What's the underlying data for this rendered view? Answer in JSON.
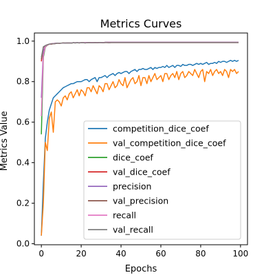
{
  "chart_data": {
    "type": "line",
    "title": "Metrics Curves",
    "xlabel": "Epochs",
    "ylabel": "Metrics Value",
    "xlim": [
      -3.5,
      103.5
    ],
    "ylim": [
      -0.005,
      1.04
    ],
    "xticks": [
      0,
      20,
      40,
      60,
      80,
      100
    ],
    "yticks": [
      0.0,
      0.2,
      0.4,
      0.6,
      0.8,
      1.0
    ],
    "xtick_labels": [
      "0",
      "20",
      "40",
      "60",
      "80",
      "100"
    ],
    "ytick_labels": [
      "0.0",
      "0.2",
      "0.4",
      "0.6",
      "0.8",
      "1.0"
    ],
    "legend_position": "lower-right",
    "grid": false,
    "x": [
      0,
      1,
      2,
      3,
      4,
      5,
      6,
      7,
      8,
      9,
      10,
      11,
      12,
      13,
      14,
      15,
      16,
      17,
      18,
      19,
      20,
      21,
      22,
      23,
      24,
      25,
      26,
      27,
      28,
      29,
      30,
      31,
      32,
      33,
      34,
      35,
      36,
      37,
      38,
      39,
      40,
      41,
      42,
      43,
      44,
      45,
      46,
      47,
      48,
      49,
      50,
      51,
      52,
      53,
      54,
      55,
      56,
      57,
      58,
      59,
      60,
      61,
      62,
      63,
      64,
      65,
      66,
      67,
      68,
      69,
      70,
      71,
      72,
      73,
      74,
      75,
      76,
      77,
      78,
      79,
      80,
      81,
      82,
      83,
      84,
      85,
      86,
      87,
      88,
      89,
      90,
      91,
      92,
      93,
      94,
      95,
      96,
      97,
      98,
      99
    ],
    "series": [
      {
        "name": "competition_dice_coef",
        "color": "#1f77b4",
        "values": [
          0.04,
          0.3,
          0.52,
          0.6,
          0.66,
          0.69,
          0.72,
          0.73,
          0.74,
          0.75,
          0.76,
          0.77,
          0.775,
          0.78,
          0.785,
          0.79,
          0.79,
          0.795,
          0.8,
          0.8,
          0.8,
          0.805,
          0.81,
          0.81,
          0.8,
          0.81,
          0.815,
          0.82,
          0.8,
          0.82,
          0.82,
          0.825,
          0.83,
          0.82,
          0.83,
          0.835,
          0.84,
          0.83,
          0.84,
          0.845,
          0.84,
          0.845,
          0.85,
          0.85,
          0.84,
          0.85,
          0.855,
          0.86,
          0.85,
          0.86,
          0.86,
          0.865,
          0.86,
          0.86,
          0.865,
          0.87,
          0.86,
          0.87,
          0.865,
          0.87,
          0.87,
          0.875,
          0.87,
          0.88,
          0.87,
          0.875,
          0.88,
          0.87,
          0.88,
          0.88,
          0.875,
          0.885,
          0.88,
          0.88,
          0.885,
          0.885,
          0.88,
          0.885,
          0.89,
          0.885,
          0.89,
          0.885,
          0.89,
          0.895,
          0.885,
          0.89,
          0.89,
          0.895,
          0.89,
          0.9,
          0.895,
          0.9,
          0.9,
          0.895,
          0.9,
          0.905,
          0.9,
          0.905,
          0.9,
          0.905
        ]
      },
      {
        "name": "val_competition_dice_coef",
        "color": "#ff7f0e",
        "values": [
          0.04,
          0.2,
          0.5,
          0.46,
          0.62,
          0.65,
          0.55,
          0.7,
          0.71,
          0.7,
          0.68,
          0.72,
          0.73,
          0.71,
          0.74,
          0.75,
          0.72,
          0.74,
          0.76,
          0.73,
          0.76,
          0.75,
          0.73,
          0.77,
          0.77,
          0.75,
          0.78,
          0.76,
          0.74,
          0.78,
          0.77,
          0.75,
          0.79,
          0.79,
          0.76,
          0.78,
          0.8,
          0.77,
          0.78,
          0.81,
          0.79,
          0.78,
          0.82,
          0.77,
          0.79,
          0.81,
          0.82,
          0.79,
          0.8,
          0.83,
          0.78,
          0.82,
          0.82,
          0.79,
          0.83,
          0.8,
          0.82,
          0.84,
          0.81,
          0.82,
          0.83,
          0.8,
          0.84,
          0.84,
          0.81,
          0.83,
          0.84,
          0.82,
          0.85,
          0.81,
          0.84,
          0.85,
          0.82,
          0.83,
          0.85,
          0.84,
          0.83,
          0.86,
          0.84,
          0.82,
          0.85,
          0.86,
          0.8,
          0.85,
          0.84,
          0.86,
          0.83,
          0.85,
          0.86,
          0.84,
          0.85,
          0.83,
          0.86,
          0.85,
          0.82,
          0.86,
          0.85,
          0.86,
          0.84,
          0.85
        ]
      },
      {
        "name": "dice_coef",
        "color": "#2ca02c",
        "values": [
          0.54,
          0.92,
          0.97,
          0.98,
          0.985,
          0.987,
          0.988,
          0.989,
          0.99,
          0.99,
          0.99,
          0.99,
          0.991,
          0.991,
          0.991,
          0.991,
          0.992,
          0.992,
          0.992,
          0.992,
          0.992,
          0.992,
          0.993,
          0.993,
          0.993,
          0.993,
          0.993,
          0.993,
          0.993,
          0.993,
          0.993,
          0.993,
          0.994,
          0.994,
          0.994,
          0.994,
          0.994,
          0.994,
          0.994,
          0.994,
          0.994,
          0.994,
          0.994,
          0.994,
          0.994,
          0.994,
          0.994,
          0.994,
          0.994,
          0.994,
          0.994,
          0.994,
          0.994,
          0.994,
          0.994,
          0.994,
          0.994,
          0.994,
          0.994,
          0.994,
          0.994,
          0.994,
          0.994,
          0.994,
          0.994,
          0.994,
          0.994,
          0.994,
          0.994,
          0.994,
          0.994,
          0.994,
          0.994,
          0.994,
          0.994,
          0.994,
          0.994,
          0.994,
          0.994,
          0.994,
          0.994,
          0.994,
          0.994,
          0.994,
          0.994,
          0.994,
          0.994,
          0.994,
          0.994,
          0.994,
          0.994,
          0.994,
          0.994,
          0.994,
          0.994,
          0.994,
          0.994,
          0.994,
          0.994,
          0.994
        ]
      },
      {
        "name": "val_dice_coef",
        "color": "#d62728",
        "values": [
          0.9,
          0.97,
          0.975,
          0.98,
          0.985,
          0.985,
          0.987,
          0.988,
          0.99,
          0.989,
          0.99,
          0.991,
          0.99,
          0.991,
          0.991,
          0.99,
          0.992,
          0.991,
          0.992,
          0.991,
          0.992,
          0.992,
          0.991,
          0.992,
          0.993,
          0.992,
          0.992,
          0.993,
          0.992,
          0.993,
          0.993,
          0.992,
          0.993,
          0.993,
          0.992,
          0.993,
          0.993,
          0.993,
          0.993,
          0.993,
          0.993,
          0.993,
          0.993,
          0.993,
          0.993,
          0.993,
          0.993,
          0.993,
          0.993,
          0.993,
          0.993,
          0.993,
          0.993,
          0.993,
          0.993,
          0.993,
          0.993,
          0.993,
          0.993,
          0.993,
          0.993,
          0.993,
          0.993,
          0.993,
          0.993,
          0.993,
          0.993,
          0.993,
          0.993,
          0.993,
          0.993,
          0.993,
          0.993,
          0.993,
          0.993,
          0.993,
          0.993,
          0.993,
          0.993,
          0.993,
          0.993,
          0.993,
          0.993,
          0.993,
          0.993,
          0.993,
          0.993,
          0.993,
          0.993,
          0.993,
          0.993,
          0.993,
          0.993,
          0.993,
          0.993,
          0.993,
          0.993,
          0.993,
          0.993,
          0.993
        ]
      },
      {
        "name": "precision",
        "color": "#9467bd",
        "values": [
          0.72,
          0.95,
          0.975,
          0.982,
          0.985,
          0.987,
          0.988,
          0.989,
          0.99,
          0.99,
          0.99,
          0.99,
          0.991,
          0.991,
          0.991,
          0.991,
          0.992,
          0.992,
          0.992,
          0.992,
          0.992,
          0.992,
          0.993,
          0.993,
          0.993,
          0.993,
          0.993,
          0.993,
          0.993,
          0.993,
          0.993,
          0.993,
          0.994,
          0.994,
          0.994,
          0.994,
          0.994,
          0.994,
          0.994,
          0.994,
          0.994,
          0.994,
          0.994,
          0.994,
          0.994,
          0.994,
          0.994,
          0.994,
          0.994,
          0.994,
          0.994,
          0.994,
          0.994,
          0.994,
          0.994,
          0.994,
          0.994,
          0.994,
          0.994,
          0.994,
          0.994,
          0.994,
          0.994,
          0.994,
          0.994,
          0.994,
          0.994,
          0.994,
          0.994,
          0.994,
          0.994,
          0.994,
          0.994,
          0.994,
          0.994,
          0.994,
          0.994,
          0.994,
          0.994,
          0.994,
          0.994,
          0.994,
          0.994,
          0.994,
          0.994,
          0.994,
          0.994,
          0.994,
          0.994,
          0.994,
          0.994,
          0.994,
          0.994,
          0.994,
          0.994,
          0.994,
          0.994,
          0.994,
          0.994,
          0.994
        ]
      },
      {
        "name": "val_precision",
        "color": "#8c564b",
        "values": [
          0.91,
          0.97,
          0.978,
          0.982,
          0.985,
          0.986,
          0.987,
          0.988,
          0.99,
          0.989,
          0.99,
          0.991,
          0.99,
          0.991,
          0.991,
          0.99,
          0.992,
          0.991,
          0.992,
          0.991,
          0.992,
          0.992,
          0.991,
          0.992,
          0.993,
          0.992,
          0.992,
          0.993,
          0.992,
          0.993,
          0.993,
          0.992,
          0.993,
          0.993,
          0.992,
          0.993,
          0.993,
          0.993,
          0.993,
          0.993,
          0.993,
          0.993,
          0.993,
          0.993,
          0.993,
          0.993,
          0.993,
          0.993,
          0.993,
          0.993,
          0.993,
          0.993,
          0.993,
          0.993,
          0.993,
          0.993,
          0.993,
          0.993,
          0.993,
          0.993,
          0.993,
          0.993,
          0.993,
          0.993,
          0.993,
          0.993,
          0.993,
          0.993,
          0.993,
          0.993,
          0.993,
          0.993,
          0.993,
          0.993,
          0.993,
          0.993,
          0.993,
          0.993,
          0.993,
          0.993,
          0.993,
          0.993,
          0.993,
          0.993,
          0.993,
          0.993,
          0.993,
          0.993,
          0.993,
          0.993,
          0.993,
          0.993,
          0.993,
          0.993,
          0.993,
          0.993,
          0.993,
          0.993,
          0.993,
          0.993
        ]
      },
      {
        "name": "recall",
        "color": "#e377c2",
        "values": [
          0.63,
          0.93,
          0.972,
          0.981,
          0.985,
          0.987,
          0.988,
          0.989,
          0.99,
          0.99,
          0.99,
          0.99,
          0.991,
          0.991,
          0.991,
          0.991,
          0.992,
          0.992,
          0.992,
          0.992,
          0.992,
          0.992,
          0.993,
          0.993,
          0.993,
          0.993,
          0.993,
          0.993,
          0.993,
          0.993,
          0.993,
          0.993,
          0.994,
          0.994,
          0.994,
          0.994,
          0.994,
          0.994,
          0.994,
          0.994,
          0.994,
          0.994,
          0.994,
          0.994,
          0.994,
          0.994,
          0.994,
          0.994,
          0.994,
          0.994,
          0.994,
          0.994,
          0.994,
          0.994,
          0.994,
          0.994,
          0.994,
          0.994,
          0.994,
          0.994,
          0.994,
          0.994,
          0.994,
          0.994,
          0.994,
          0.994,
          0.994,
          0.994,
          0.994,
          0.994,
          0.994,
          0.994,
          0.994,
          0.994,
          0.994,
          0.994,
          0.994,
          0.994,
          0.994,
          0.994,
          0.994,
          0.994,
          0.994,
          0.994,
          0.994,
          0.994,
          0.994,
          0.994,
          0.994,
          0.994,
          0.994,
          0.994,
          0.994,
          0.994,
          0.994,
          0.994,
          0.994,
          0.994,
          0.994,
          0.994
        ]
      },
      {
        "name": "val_recall",
        "color": "#7f7f7f",
        "values": [
          0.92,
          0.972,
          0.978,
          0.982,
          0.985,
          0.986,
          0.987,
          0.988,
          0.99,
          0.989,
          0.99,
          0.991,
          0.99,
          0.991,
          0.991,
          0.99,
          0.992,
          0.991,
          0.992,
          0.991,
          0.992,
          0.992,
          0.991,
          0.992,
          0.993,
          0.992,
          0.992,
          0.993,
          0.992,
          0.993,
          0.993,
          0.992,
          0.993,
          0.993,
          0.992,
          0.993,
          0.993,
          0.993,
          0.993,
          0.993,
          0.993,
          0.993,
          0.993,
          0.993,
          0.993,
          0.993,
          0.993,
          0.993,
          0.993,
          0.993,
          0.993,
          0.993,
          0.993,
          0.993,
          0.993,
          0.993,
          0.993,
          0.993,
          0.993,
          0.993,
          0.993,
          0.993,
          0.993,
          0.993,
          0.993,
          0.993,
          0.993,
          0.993,
          0.993,
          0.993,
          0.993,
          0.993,
          0.993,
          0.993,
          0.993,
          0.993,
          0.993,
          0.993,
          0.993,
          0.993,
          0.993,
          0.993,
          0.993,
          0.993,
          0.993,
          0.993,
          0.993,
          0.993,
          0.993,
          0.993,
          0.993,
          0.993,
          0.993,
          0.993,
          0.993,
          0.993,
          0.993,
          0.993,
          0.993,
          0.993
        ]
      }
    ]
  }
}
